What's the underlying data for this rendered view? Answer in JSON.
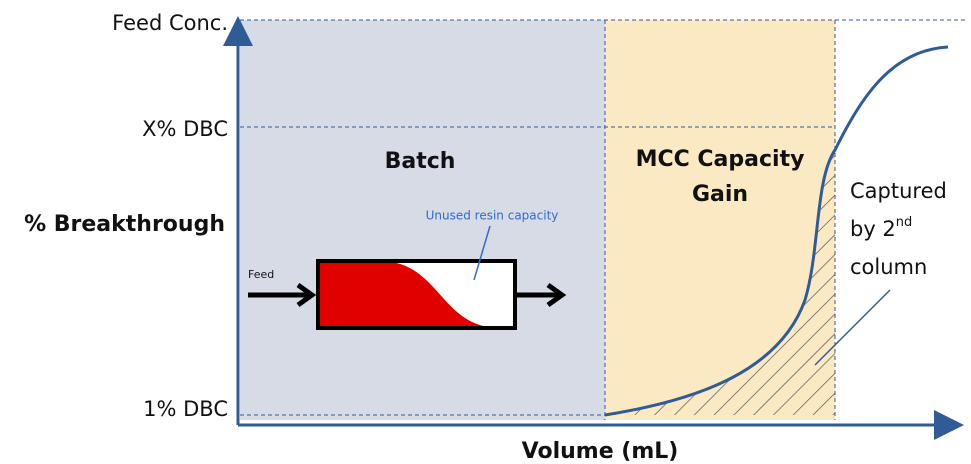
{
  "axes": {
    "y_top": "Feed Conc.",
    "y_mid": "X% DBC",
    "y_title": "% Breakthrough",
    "y_low": "1% DBC",
    "x_title": "Volume (mL)"
  },
  "regions": {
    "batch": "Batch",
    "mcc_line1": "MCC Capacity",
    "mcc_line2": "Gain"
  },
  "column": {
    "feed": "Feed",
    "unused": "Unused resin capacity"
  },
  "captured": {
    "line1": "Captured",
    "line2": "by 2",
    "sup": "nd",
    "line3": "column"
  }
}
